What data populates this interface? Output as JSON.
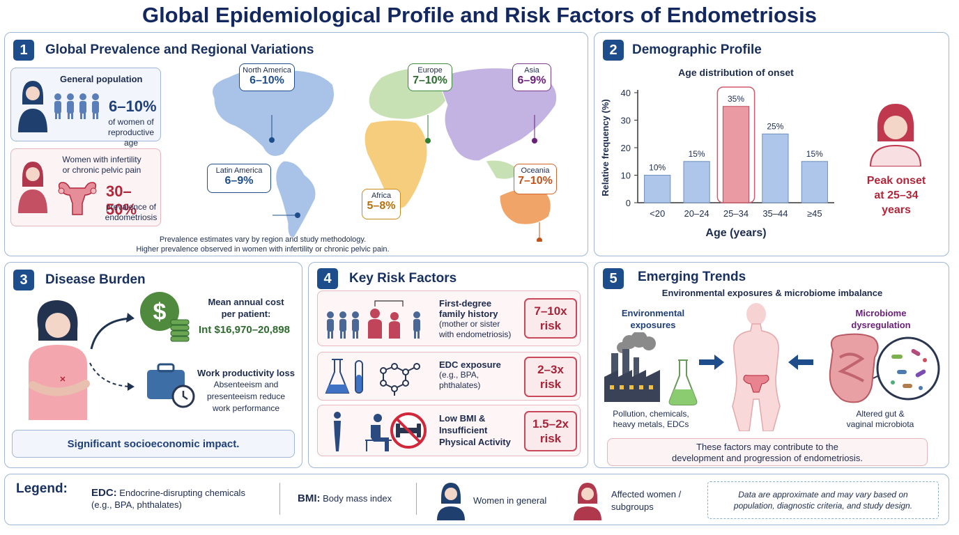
{
  "title": "Global Epidemiological Profile and Risk Factors of Endometriosis",
  "p1": {
    "num": "1",
    "title": "Global Prevalence and Regional Variations",
    "general": {
      "label": "General population",
      "value": "6–10%",
      "desc1": "of women of",
      "desc2": "reproductive age"
    },
    "infertility": {
      "label1": "Women with infertility",
      "label2": "or chronic pelvic pain",
      "value": "30–50%",
      "desc1": "prevalence of",
      "desc2": "endometriosis"
    },
    "regions": [
      {
        "name": "North America",
        "value": "6–10%"
      },
      {
        "name": "Europe",
        "value": "7–10%"
      },
      {
        "name": "Asia",
        "value": "6–9%"
      },
      {
        "name": "Latin America",
        "value": "6–9%"
      },
      {
        "name": "Africa",
        "value": "5–8%"
      },
      {
        "name": "Oceania",
        "value": "7–10%"
      }
    ],
    "note1": "Prevalence estimates vary by region and study methodology.",
    "note2": "Higher prevalence observed in women with infertility or chronic pelvic pain."
  },
  "p2": {
    "num": "2",
    "title": "Demographic Profile",
    "peak1": "Peak onset",
    "peak2": "at 25–34",
    "peak3": "years"
  },
  "chart_data": {
    "type": "bar",
    "title": "Age distribution of onset",
    "xlabel": "Age (years)",
    "ylabel": "Relative frequency (%)",
    "categories": [
      "<20",
      "20–24",
      "25–34",
      "35–44",
      "≥45"
    ],
    "values": [
      10,
      15,
      35,
      25,
      15
    ],
    "value_labels": [
      "10%",
      "15%",
      "35%",
      "25%",
      "15%"
    ],
    "yticks": [
      "0",
      "10",
      "20",
      "30",
      "40"
    ],
    "ylim": [
      0,
      40
    ],
    "highlight": "25–34",
    "colors": {
      "bar": "#aec6ea",
      "highlight": "#ea9aa3"
    }
  },
  "p3": {
    "num": "3",
    "title": "Disease Burden",
    "cost_label1": "Mean annual cost",
    "cost_label2": "per patient:",
    "cost_value": "Int $16,970–20,898",
    "loss_title": "Work productivity loss",
    "loss1": "Absenteeism and",
    "loss2": "presenteeism reduce",
    "loss3": "work performance",
    "impact": "Significant socioeconomic impact."
  },
  "p4": {
    "num": "4",
    "title": "Key Risk Factors",
    "rows": [
      {
        "t1": "First-degree",
        "t2": "family history",
        "s1": "(mother or sister",
        "s2": "with endometriosis)",
        "r1": "7–10x",
        "r2": "risk"
      },
      {
        "t1": "EDC exposure",
        "s1": "(e.g., BPA,",
        "s2": "phthalates)",
        "r1": "2–3x",
        "r2": "risk"
      },
      {
        "t1": "Low BMI &",
        "t2": "Insufficient",
        "t3": "Physical Activity",
        "r1": "1.5–2x",
        "r2": "risk"
      }
    ]
  },
  "p5": {
    "num": "5",
    "title": "Emerging Trends",
    "subtitle": "Environmental exposures & microbiome imbalance",
    "env1": "Environmental",
    "env2": "exposures",
    "micro1": "Microbiome",
    "micro2": "dysregulation",
    "pollution1": "Pollution, chemicals,",
    "pollution2": "heavy metals, EDCs",
    "gut1": "Altered gut &",
    "gut2": "vaginal microbiota",
    "conclusion1": "These factors may contribute to the",
    "conclusion2": "development and progression of endometriosis."
  },
  "legend": {
    "title": "Legend:",
    "edc_abbr": "EDC:",
    "edc_def1": "Endocrine-disrupting chemicals",
    "edc_def2": "(e.g., BPA, phthalates)",
    "bmi_abbr": "BMI:",
    "bmi_def": "Body mass index",
    "women_general": "Women in general",
    "affected1": "Affected women /",
    "affected2": "subgroups",
    "disclaimer1": "Data are approximate and may vary based on",
    "disclaimer2": "population, diagnostic criteria, and study design."
  },
  "colors": {
    "navy": "#1e4d8c",
    "red": "#b3263a",
    "green": "#2e6b2e"
  }
}
